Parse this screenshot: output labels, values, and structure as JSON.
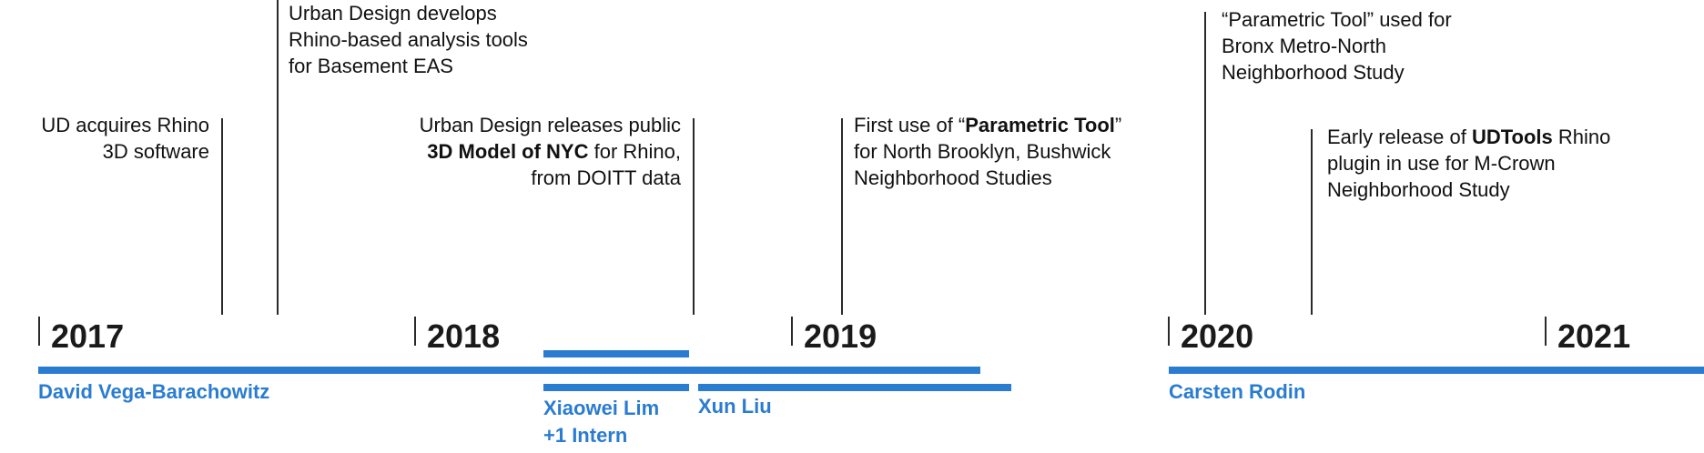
{
  "events": [
    {
      "lines": [
        [
          {
            "t": "UD acquires Rhino"
          }
        ],
        [
          {
            "t": "3D software"
          }
        ]
      ]
    },
    {
      "lines": [
        [
          {
            "t": "Urban Design develops"
          }
        ],
        [
          {
            "t": "Rhino-based analysis tools"
          }
        ],
        [
          {
            "t": "for Basement EAS"
          }
        ]
      ]
    },
    {
      "lines": [
        [
          {
            "t": "Urban Design releases public"
          }
        ],
        [
          {
            "t": "3D Model of NYC",
            "b": true
          },
          {
            "t": " for Rhino,"
          }
        ],
        [
          {
            "t": "from DOITT data"
          }
        ]
      ]
    },
    {
      "lines": [
        [
          {
            "t": "First use of “"
          },
          {
            "t": "Parametric Tool",
            "b": true
          },
          {
            "t": "”"
          }
        ],
        [
          {
            "t": "for North Brooklyn, Bushwick"
          }
        ],
        [
          {
            "t": "Neighborhood Studies"
          }
        ]
      ]
    },
    {
      "lines": [
        [
          {
            "t": "“Parametric Tool” used for"
          }
        ],
        [
          {
            "t": "Bronx Metro-North"
          }
        ],
        [
          {
            "t": "Neighborhood Study"
          }
        ]
      ]
    },
    {
      "lines": [
        [
          {
            "t": "Early release of "
          },
          {
            "t": "UDTools",
            "b": true
          },
          {
            "t": " Rhino"
          }
        ],
        [
          {
            "t": "plugin in use for M-Crown"
          }
        ],
        [
          {
            "t": "Neighborhood Study"
          }
        ]
      ]
    }
  ],
  "years": [
    "2017",
    "2018",
    "2019",
    "2020",
    "2021"
  ],
  "people": {
    "david": "David Vega-Barachowitz",
    "xiaowei_line1": "Xiaowei Lim",
    "xiaowei_line2": "+1 Intern",
    "xun": "Xun Liu",
    "carsten": "Carsten Rodin"
  },
  "colors": {
    "accent": "#2a7cd1",
    "text": "#111111",
    "line": "#2a2a2a"
  }
}
